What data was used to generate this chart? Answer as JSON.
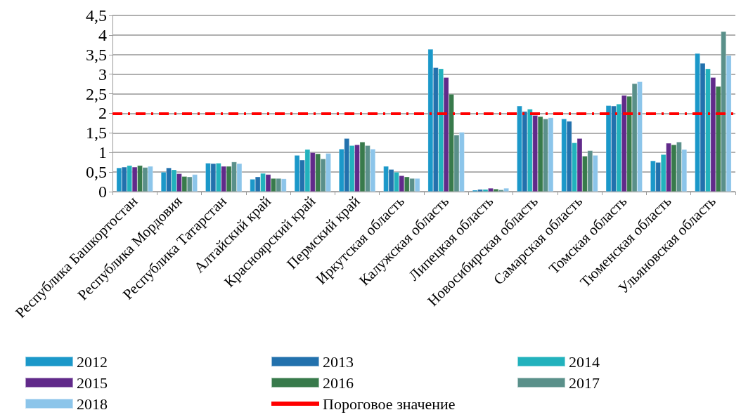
{
  "chart_data": {
    "type": "bar",
    "categories": [
      "Республика Башкортостан",
      "Республика Мордовия",
      "Республика Татарстан",
      "Алтайский край",
      "Красноярский край",
      "Пермский край",
      "Иркутская область",
      "Калужская область",
      "Липецкая область",
      "Новосибирская область",
      "Самарская область",
      "Томская область",
      "Тюменская область",
      "Ульяновская область"
    ],
    "series": [
      {
        "name": "2012",
        "color": "#1b98c9",
        "values": [
          0.61,
          0.5,
          0.73,
          0.32,
          0.93,
          1.09,
          0.65,
          3.64,
          0.04,
          2.19,
          1.86,
          2.2,
          0.79,
          3.53
        ]
      },
      {
        "name": "2013",
        "color": "#2271ad",
        "values": [
          0.63,
          0.61,
          0.72,
          0.38,
          0.81,
          1.36,
          0.57,
          3.17,
          0.06,
          2.05,
          1.8,
          2.19,
          0.75,
          3.28
        ]
      },
      {
        "name": "2014",
        "color": "#22b2bd",
        "values": [
          0.67,
          0.56,
          0.73,
          0.47,
          1.08,
          1.18,
          0.5,
          3.14,
          0.06,
          2.11,
          1.25,
          2.24,
          0.95,
          3.14
        ]
      },
      {
        "name": "2015",
        "color": "#612a8a",
        "values": [
          0.63,
          0.46,
          0.65,
          0.44,
          1.0,
          1.2,
          0.41,
          2.92,
          0.09,
          1.95,
          1.36,
          2.46,
          1.24,
          2.92
        ]
      },
      {
        "name": "2016",
        "color": "#387a4b",
        "values": [
          0.67,
          0.39,
          0.65,
          0.34,
          0.97,
          1.27,
          0.38,
          2.49,
          0.07,
          1.92,
          0.91,
          2.44,
          1.2,
          2.69
        ]
      },
      {
        "name": "2017",
        "color": "#5a908a",
        "values": [
          0.62,
          0.38,
          0.76,
          0.34,
          0.84,
          1.18,
          0.34,
          1.45,
          0.05,
          1.86,
          1.05,
          2.76,
          1.27,
          4.09
        ]
      },
      {
        "name": "2018",
        "color": "#8cc5ea",
        "values": [
          0.65,
          0.44,
          0.72,
          0.33,
          0.98,
          1.09,
          0.34,
          1.52,
          0.09,
          1.89,
          0.93,
          2.81,
          1.08,
          3.48
        ]
      }
    ],
    "ylim": [
      0,
      4.5
    ],
    "yticks": [
      0,
      {
        "value": 0.5,
        "label": "0,5"
      },
      1,
      {
        "value": 1.5,
        "label": "1,5"
      },
      2,
      {
        "value": 2.5,
        "label": "2,5"
      },
      3,
      {
        "value": 3.5,
        "label": "3,5"
      },
      4,
      {
        "value": 4.5,
        "label": "4,5"
      }
    ],
    "ref_lines": [
      {
        "axis": "y",
        "value": 2,
        "label": "Пороговое значение",
        "color": "#ff0000",
        "line_style": "dashdot"
      }
    ],
    "grid": "y",
    "legend": "bottom"
  }
}
